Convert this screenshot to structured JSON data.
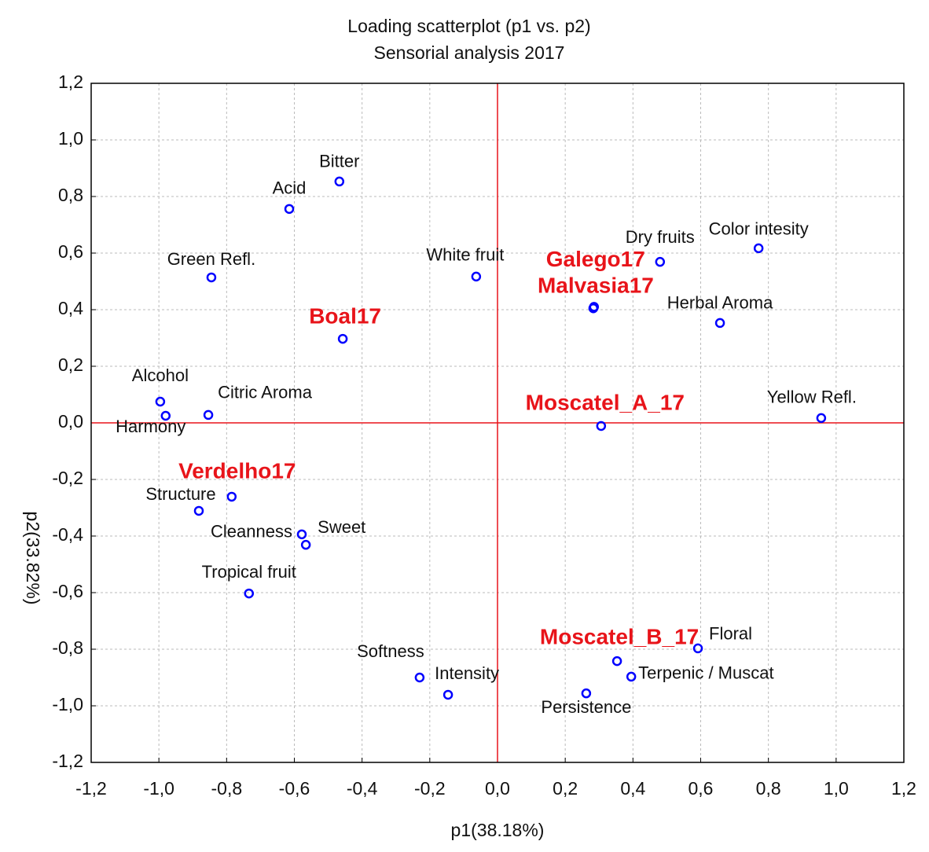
{
  "chart_data": {
    "type": "scatter",
    "title": "Loading scatterplot (p1 vs. p2)",
    "subtitle": "Sensorial analysis 2017",
    "xlabel": "p1(38.18%)",
    "ylabel": "p2(33.82%)",
    "xlim": [
      -1.2,
      1.2
    ],
    "ylim": [
      -1.2,
      1.2
    ],
    "xticks": [
      {
        "value": -1.2,
        "label": "-1,2"
      },
      {
        "value": -1.0,
        "label": "-1,0"
      },
      {
        "value": -0.8,
        "label": "-0,8"
      },
      {
        "value": -0.6,
        "label": "-0,6"
      },
      {
        "value": -0.4,
        "label": "-0,4"
      },
      {
        "value": -0.2,
        "label": "-0,2"
      },
      {
        "value": 0,
        "label": "0,0"
      },
      {
        "value": 0.2,
        "label": "0,2"
      },
      {
        "value": 0.4,
        "label": "0,4"
      },
      {
        "value": 0.6,
        "label": "0,6"
      },
      {
        "value": 0.8,
        "label": "0,8"
      },
      {
        "value": 1.0,
        "label": "1,0"
      },
      {
        "value": 1.2,
        "label": "1,2"
      }
    ],
    "yticks": [
      {
        "value": 1.2,
        "label": "1,2"
      },
      {
        "value": 1.0,
        "label": "1,0"
      },
      {
        "value": 0.8,
        "label": "0,8"
      },
      {
        "value": 0.6,
        "label": "0,6"
      },
      {
        "value": 0.4,
        "label": "0,4"
      },
      {
        "value": 0.2,
        "label": "0,2"
      },
      {
        "value": 0,
        "label": "0,0"
      },
      {
        "value": -0.2,
        "label": "-0,2"
      },
      {
        "value": -0.4,
        "label": "-0,4"
      },
      {
        "value": -0.6,
        "label": "-0,6"
      },
      {
        "value": -0.8,
        "label": "-0,8"
      },
      {
        "value": -1.0,
        "label": "-1,0"
      },
      {
        "value": -1.2,
        "label": "-1,2"
      }
    ],
    "grid": true,
    "reference_lines": {
      "x": 0,
      "y": 0,
      "color": "#e8141a"
    },
    "series": [
      {
        "color": "#0000ff",
        "label_color": "#111111",
        "labels": [
          "Bitter",
          "Acid",
          "Green Refl.",
          "White fruit",
          "Dry fruits",
          "Color intesity",
          "Herbal Aroma",
          "Alcohol",
          "Harmony",
          "Citric Aroma",
          "Yellow Refl.",
          "Structure",
          "Cleanness",
          "Sweet",
          "Tropical fruit",
          "Softness",
          "Intensity",
          "Persistence",
          "Terpenic / Muscat",
          "Floral"
        ],
        "x": [
          -0.467,
          -0.615,
          -0.845,
          -0.063,
          0.48,
          0.771,
          0.657,
          -0.996,
          -0.98,
          -0.854,
          0.956,
          -0.882,
          -0.578,
          -0.566,
          -0.734,
          -0.23,
          -0.146,
          0.262,
          0.395,
          0.592
        ],
        "values": [
          0.853,
          0.756,
          0.514,
          0.517,
          0.569,
          0.617,
          0.353,
          0.075,
          0.025,
          0.028,
          0.017,
          -0.311,
          -0.394,
          -0.431,
          -0.603,
          -0.9,
          -0.961,
          -0.956,
          -0.897,
          -0.797
        ]
      },
      {
        "color": "#0000ff",
        "label_color": "#e8141a",
        "labels": [
          "Galego17",
          "Malvasia17",
          "Boal17",
          "Moscatel_A_17",
          "Verdelho17",
          "Moscatel_B_17"
        ],
        "x": [
          0.285,
          0.283,
          -0.457,
          0.306,
          -0.785,
          0.353
        ],
        "values": [
          0.41,
          0.405,
          0.297,
          -0.011,
          -0.261,
          -0.842
        ]
      }
    ]
  }
}
